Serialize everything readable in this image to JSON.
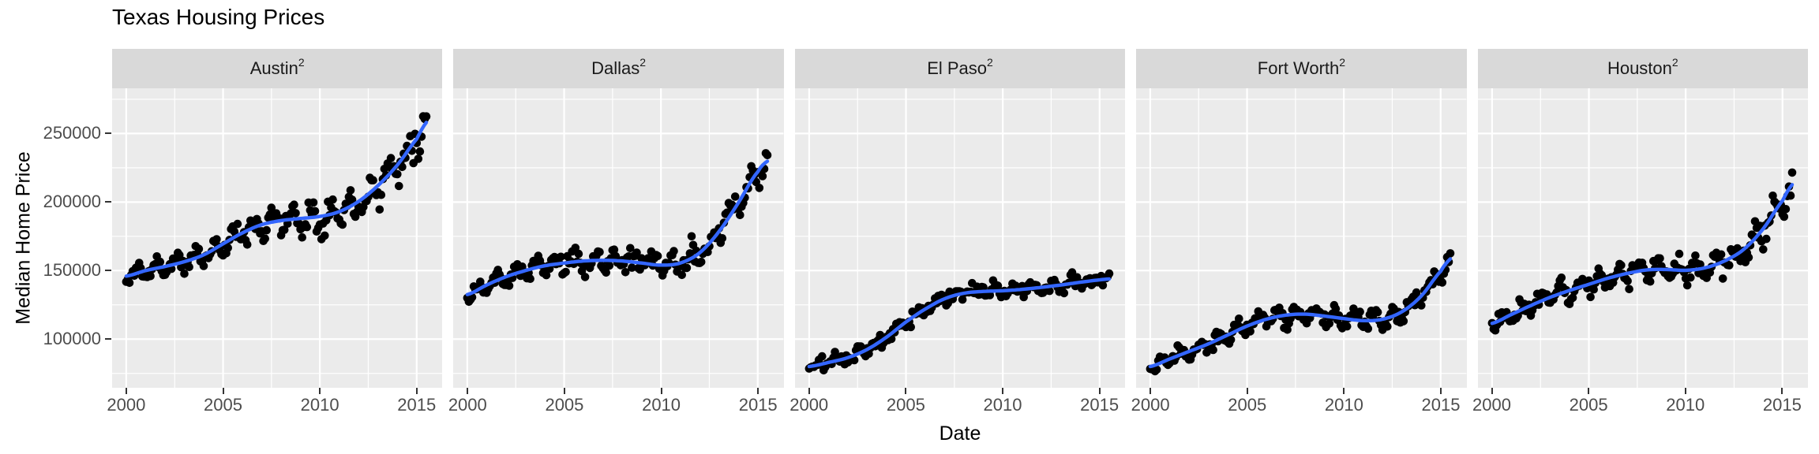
{
  "title": "Texas Housing Prices",
  "axes": {
    "x_label": "Date",
    "y_label": "Median Home Price",
    "x_ticks": [
      2000,
      2005,
      2010,
      2015
    ],
    "x_minor_ticks": [
      2002.5,
      2007.5,
      2012.5
    ],
    "y_ticks": [
      100000,
      150000,
      200000,
      250000
    ],
    "y_minor_ticks": [
      75000,
      125000,
      175000,
      225000,
      275000
    ],
    "x_domain": [
      1999.27,
      2016.33
    ],
    "y_domain": [
      64500,
      283000
    ]
  },
  "colors": {
    "smooth_line": "#3366FF",
    "points": "#000000",
    "panel_background": "#EBEBEB",
    "strip_background": "#D9D9D9",
    "gridline": "#FFFFFF",
    "axis_text": "#4D4D4D",
    "tick_mark": "#333333",
    "title_text": "#000000"
  },
  "chart_data": {
    "type": "scatter",
    "smoother": "loess",
    "title": "Texas Housing Prices",
    "xlabel": "Date",
    "ylabel": "Median Home Price",
    "x_unit": "year, monthly samples Jan 2000 - Jul 2015",
    "points_per_facet": 187,
    "x_start": 2000,
    "x_end": 2015.5,
    "grid": "on",
    "legend": "none",
    "facets": [
      {
        "city": "Austin",
        "exponent": "2",
        "trend": [
          [
            2000,
            146000
          ],
          [
            2001,
            150000
          ],
          [
            2002,
            153000
          ],
          [
            2003,
            156500
          ],
          [
            2004,
            161500
          ],
          [
            2005,
            169500
          ],
          [
            2006,
            177500
          ],
          [
            2007,
            183500
          ],
          [
            2008,
            186500
          ],
          [
            2009,
            188000
          ],
          [
            2010,
            189500
          ],
          [
            2011,
            193000
          ],
          [
            2012,
            200500
          ],
          [
            2013,
            212000
          ],
          [
            2014,
            227000
          ],
          [
            2015,
            246000
          ],
          [
            2015.6,
            259500
          ]
        ],
        "seasonal_amplitude": [
          5200,
          8800
        ],
        "noise_sd": [
          2600,
          5200
        ]
      },
      {
        "city": "Dallas",
        "exponent": "2",
        "trend": [
          [
            2000,
            132500
          ],
          [
            2001,
            139500
          ],
          [
            2002,
            145500
          ],
          [
            2003,
            150000
          ],
          [
            2004,
            153500
          ],
          [
            2005,
            155500
          ],
          [
            2006,
            157000
          ],
          [
            2007,
            157500
          ],
          [
            2008,
            157000
          ],
          [
            2009,
            155500
          ],
          [
            2010,
            154000
          ],
          [
            2011,
            155500
          ],
          [
            2012,
            163000
          ],
          [
            2013,
            178500
          ],
          [
            2014,
            199500
          ],
          [
            2015,
            222000
          ],
          [
            2015.6,
            230500
          ]
        ],
        "seasonal_amplitude": [
          4300,
          6300
        ],
        "noise_sd": [
          2400,
          4800
        ]
      },
      {
        "city": "El Paso",
        "exponent": "2",
        "trend": [
          [
            2000,
            80000
          ],
          [
            2001,
            83000
          ],
          [
            2002,
            86500
          ],
          [
            2003,
            92500
          ],
          [
            2004,
            101500
          ],
          [
            2005,
            112500
          ],
          [
            2006,
            122000
          ],
          [
            2007,
            129500
          ],
          [
            2008,
            133500
          ],
          [
            2009,
            134800
          ],
          [
            2010,
            135300
          ],
          [
            2011,
            136300
          ],
          [
            2012,
            137800
          ],
          [
            2013,
            139500
          ],
          [
            2014,
            141500
          ],
          [
            2015,
            143200
          ],
          [
            2015.6,
            144000
          ]
        ],
        "seasonal_amplitude": [
          2700,
          3000
        ],
        "noise_sd": [
          2300,
          2700
        ]
      },
      {
        "city": "Fort Worth",
        "exponent": "2",
        "trend": [
          [
            2000,
            80000
          ],
          [
            2001,
            85500
          ],
          [
            2002,
            91000
          ],
          [
            2003,
            96500
          ],
          [
            2004,
            103000
          ],
          [
            2005,
            109500
          ],
          [
            2006,
            114500
          ],
          [
            2007,
            117500
          ],
          [
            2008,
            118200
          ],
          [
            2009,
            116800
          ],
          [
            2010,
            115000
          ],
          [
            2011,
            113500
          ],
          [
            2012,
            114500
          ],
          [
            2013,
            120000
          ],
          [
            2014,
            131500
          ],
          [
            2015,
            149500
          ],
          [
            2015.6,
            159500
          ]
        ],
        "seasonal_amplitude": [
          3200,
          4600
        ],
        "noise_sd": [
          2100,
          3400
        ]
      },
      {
        "city": "Houston",
        "exponent": "2",
        "trend": [
          [
            2000,
            111500
          ],
          [
            2001,
            118000
          ],
          [
            2002,
            124500
          ],
          [
            2003,
            130500
          ],
          [
            2004,
            135500
          ],
          [
            2005,
            140000
          ],
          [
            2006,
            144500
          ],
          [
            2007,
            148000
          ],
          [
            2008,
            150500
          ],
          [
            2009,
            150800
          ],
          [
            2010,
            150200
          ],
          [
            2011,
            152000
          ],
          [
            2012,
            157000
          ],
          [
            2013,
            165500
          ],
          [
            2014,
            180500
          ],
          [
            2015,
            201000
          ],
          [
            2015.6,
            214000
          ]
        ],
        "seasonal_amplitude": [
          4300,
          6800
        ],
        "noise_sd": [
          2300,
          4600
        ]
      }
    ],
    "jitter_seed": 11,
    "seasonal_phase": 0.3
  }
}
